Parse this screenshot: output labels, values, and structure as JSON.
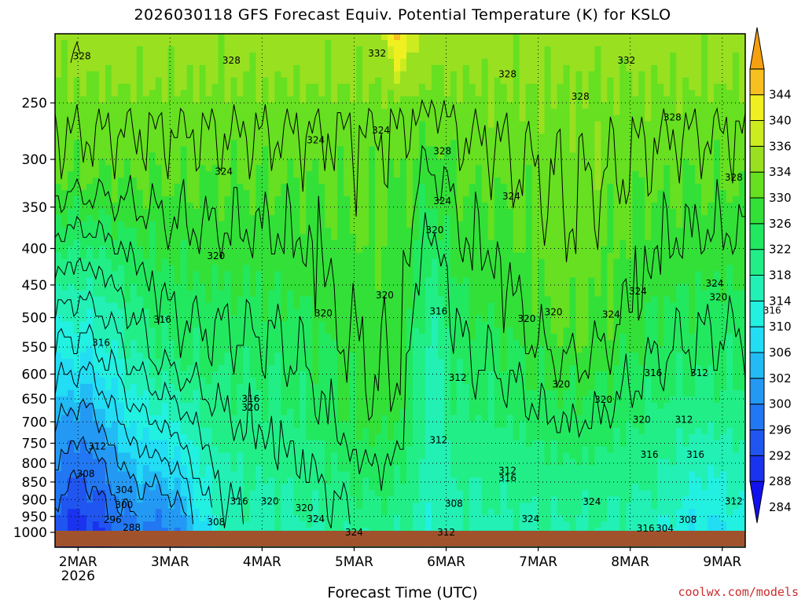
{
  "header": {
    "title": "2026030118 GFS Forecast Equiv. Potential Temperature (K) for KSLO"
  },
  "footer": {
    "xlabel": "Forecast Time (UTC)",
    "credit": "coolwx.com/models"
  },
  "colors": {
    "terrain": "#a0522d",
    "contour": "#000000",
    "background": "#ffffff"
  },
  "chart_data": {
    "type": "heatmap",
    "title": "2026030118 GFS Forecast Equiv. Potential Temperature (K) for KSLO",
    "xlabel": "Forecast Time (UTC)",
    "ylabel": "",
    "y_scale": "log-pressure",
    "y_inverted": true,
    "y_ticks": [
      250,
      300,
      350,
      400,
      450,
      500,
      550,
      600,
      650,
      700,
      750,
      800,
      850,
      900,
      950,
      1000
    ],
    "ylim": [
      200,
      1000
    ],
    "x_ticks": [
      {
        "label": "2MAR",
        "sublabel": "2026",
        "hours": 6
      },
      {
        "label": "3MAR",
        "hours": 30
      },
      {
        "label": "4MAR",
        "hours": 54
      },
      {
        "label": "5MAR",
        "hours": 78
      },
      {
        "label": "6MAR",
        "hours": 102
      },
      {
        "label": "7MAR",
        "hours": 126
      },
      {
        "label": "8MAR",
        "hours": 150
      },
      {
        "label": "9MAR",
        "hours": 174
      }
    ],
    "xlim_hours": [
      0,
      180
    ],
    "grid": true,
    "colorbar": {
      "levels": [
        284,
        288,
        292,
        296,
        300,
        302,
        306,
        310,
        314,
        318,
        322,
        326,
        330,
        334,
        336,
        340,
        344
      ],
      "colors": [
        "#1111ee",
        "#1a33ef",
        "#2055f0",
        "#2277f2",
        "#2499f4",
        "#22bbf4",
        "#22ddf4",
        "#22f0e0",
        "#22f0b4",
        "#22ee88",
        "#22e860",
        "#33e038",
        "#66e020",
        "#99e020",
        "#ccec20",
        "#f0f020",
        "#f5c020",
        "#f5a010"
      ]
    },
    "contour_labels": [
      {
        "text": "328",
        "x": 7,
        "p": 215
      },
      {
        "text": "328",
        "x": 46,
        "p": 218
      },
      {
        "text": "332",
        "x": 84,
        "p": 213
      },
      {
        "text": "332",
        "x": 149,
        "p": 218
      },
      {
        "text": "328",
        "x": 118,
        "p": 228
      },
      {
        "text": "328",
        "x": 137,
        "p": 245
      },
      {
        "text": "328",
        "x": 161,
        "p": 262
      },
      {
        "text": "324",
        "x": 68,
        "p": 282
      },
      {
        "text": "324",
        "x": 85,
        "p": 273
      },
      {
        "text": "328",
        "x": 101,
        "p": 292
      },
      {
        "text": "324",
        "x": 44,
        "p": 312
      },
      {
        "text": "328",
        "x": 177,
        "p": 318
      },
      {
        "text": "324",
        "x": 101,
        "p": 343
      },
      {
        "text": "324",
        "x": 119,
        "p": 338
      },
      {
        "text": "320",
        "x": 99,
        "p": 377
      },
      {
        "text": "320",
        "x": 42,
        "p": 410
      },
      {
        "text": "320",
        "x": 86,
        "p": 465
      },
      {
        "text": "324",
        "x": 152,
        "p": 459
      },
      {
        "text": "324",
        "x": 172,
        "p": 448
      },
      {
        "text": "320",
        "x": 173,
        "p": 468
      },
      {
        "text": "316",
        "x": 100,
        "p": 490
      },
      {
        "text": "320",
        "x": 70,
        "p": 493
      },
      {
        "text": "320",
        "x": 130,
        "p": 491
      },
      {
        "text": "324",
        "x": 145,
        "p": 495
      },
      {
        "text": "320",
        "x": 123,
        "p": 502
      },
      {
        "text": "316",
        "x": 28,
        "p": 503
      },
      {
        "text": "316",
        "x": 12,
        "p": 542
      },
      {
        "text": "316",
        "x": 187,
        "p": 489
      },
      {
        "text": "312",
        "x": 105,
        "p": 607
      },
      {
        "text": "316",
        "x": 156,
        "p": 598
      },
      {
        "text": "312",
        "x": 168,
        "p": 598
      },
      {
        "text": "320",
        "x": 132,
        "p": 620
      },
      {
        "text": "316",
        "x": 51,
        "p": 650
      },
      {
        "text": "320",
        "x": 51,
        "p": 668
      },
      {
        "text": "320",
        "x": 143,
        "p": 652
      },
      {
        "text": "320",
        "x": 153,
        "p": 695
      },
      {
        "text": "312",
        "x": 164,
        "p": 695
      },
      {
        "text": "312",
        "x": 100,
        "p": 742
      },
      {
        "text": "312",
        "x": 11,
        "p": 758
      },
      {
        "text": "316",
        "x": 155,
        "p": 778
      },
      {
        "text": "316",
        "x": 167,
        "p": 778
      },
      {
        "text": "312",
        "x": 118,
        "p": 820
      },
      {
        "text": "316",
        "x": 118,
        "p": 840
      },
      {
        "text": "308",
        "x": 8,
        "p": 828
      },
      {
        "text": "304",
        "x": 18,
        "p": 872
      },
      {
        "text": "300",
        "x": 18,
        "p": 915
      },
      {
        "text": "316",
        "x": 48,
        "p": 905
      },
      {
        "text": "320",
        "x": 56,
        "p": 905
      },
      {
        "text": "320",
        "x": 65,
        "p": 925
      },
      {
        "text": "308",
        "x": 104,
        "p": 912
      },
      {
        "text": "324",
        "x": 140,
        "p": 906
      },
      {
        "text": "312",
        "x": 177,
        "p": 905
      },
      {
        "text": "296",
        "x": 15,
        "p": 960
      },
      {
        "text": "324",
        "x": 68,
        "p": 958
      },
      {
        "text": "324",
        "x": 124,
        "p": 958
      },
      {
        "text": "308",
        "x": 165,
        "p": 960
      },
      {
        "text": "288",
        "x": 20,
        "p": 985
      },
      {
        "text": "308",
        "x": 42,
        "p": 968
      },
      {
        "text": "316",
        "x": 154,
        "p": 987
      },
      {
        "text": "304",
        "x": 159,
        "p": 987
      },
      {
        "text": "324",
        "x": 78,
        "p": 1005
      },
      {
        "text": "312",
        "x": 102,
        "p": 1005
      }
    ]
  }
}
